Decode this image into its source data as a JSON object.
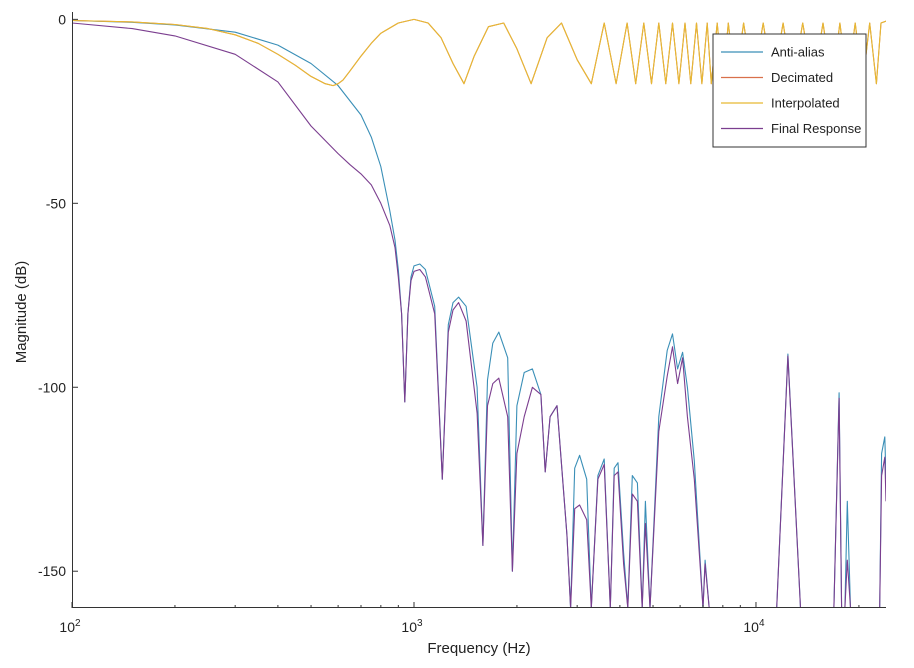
{
  "chart_data": {
    "type": "line",
    "title": "",
    "xlabel": "Frequency (Hz)",
    "ylabel": "Magnitude (dB)",
    "xscale": "log",
    "xlim": [
      100,
      24000
    ],
    "ylim": [
      -160,
      2
    ],
    "grid": false,
    "legend_placement": "top-right",
    "x_ticks": [
      {
        "value": 100,
        "base": "10",
        "exp": "2"
      },
      {
        "value": 1000,
        "base": "10",
        "exp": "3"
      },
      {
        "value": 10000,
        "base": "10",
        "exp": "4"
      }
    ],
    "y_ticks": [
      {
        "value": 0,
        "label": "0"
      },
      {
        "value": -50,
        "label": "-50"
      },
      {
        "value": -100,
        "label": "-100"
      },
      {
        "value": -150,
        "label": "-150"
      }
    ],
    "series": [
      {
        "name": "Anti-alias",
        "color": "#3a8fb7",
        "x": [
          100,
          150,
          200,
          300,
          400,
          500,
          600,
          700,
          750,
          800,
          850,
          880,
          900,
          920,
          940,
          960,
          980,
          1000,
          1040,
          1080,
          1150,
          1210,
          1260,
          1300,
          1350,
          1420,
          1530,
          1590,
          1640,
          1700,
          1770,
          1880,
          1940,
          2000,
          2100,
          2220,
          2350,
          2420,
          2500,
          2620,
          2800,
          2870,
          2950,
          3050,
          3200,
          3300,
          3450,
          3600,
          3750,
          3850,
          3950,
          4100,
          4220,
          4350,
          4500,
          4650,
          4750,
          4900,
          5200,
          5500,
          5700,
          5900,
          6100,
          6300,
          6600,
          7000,
          7100,
          7300,
          8000,
          10000,
          11500,
          12400,
          13500,
          15000,
          16900,
          17500,
          17800,
          18200,
          18500,
          18900,
          19000,
          22000,
          23000,
          23300,
          23800,
          24000
        ],
        "y": [
          -0.3,
          -0.8,
          -1.5,
          -3.5,
          -7,
          -12,
          -18,
          -26,
          -32,
          -40,
          -52,
          -60,
          -68,
          -80,
          -104,
          -80,
          -70,
          -67,
          -66.5,
          -68,
          -78,
          -125,
          -83,
          -77,
          -75.5,
          -78,
          -100,
          -143,
          -98,
          -88,
          -85,
          -92,
          -150,
          -105,
          -96,
          -95,
          -102,
          -123,
          -108,
          -105,
          -140,
          -160,
          -122,
          -118.5,
          -125,
          -160,
          -124,
          -119.5,
          -160,
          -122,
          -120.5,
          -145,
          -160,
          -124,
          -126,
          -160,
          -131,
          -160,
          -108,
          -90,
          -85.5,
          -95,
          -90.5,
          -100,
          -120,
          -160,
          -147,
          -160,
          -160,
          -160,
          -160,
          -91,
          -160,
          -160,
          -160,
          -101.5,
          -160,
          -160,
          -131,
          -160,
          -160,
          -160,
          -160,
          -118,
          -113.5,
          -125
        ]
      },
      {
        "name": "Decimated",
        "color": "#d9704b",
        "x": [
          100,
          150,
          200,
          250,
          300,
          350,
          400,
          450,
          500,
          550,
          580,
          600,
          620,
          650,
          700,
          750,
          800,
          900,
          1000,
          1100,
          1200,
          1300,
          1400,
          1500,
          1650,
          1830,
          2000,
          2200,
          2450,
          2700,
          3000,
          3300,
          3600,
          3900,
          4200,
          4450,
          4700,
          4950,
          5200,
          5450,
          5700,
          5950,
          6200,
          6450,
          6700,
          6950,
          7200,
          7400,
          7700,
          8000,
          8300,
          8700,
          9200,
          9800,
          10500,
          11200,
          12000,
          12800,
          13700,
          14700,
          15700,
          16700,
          17600,
          18500,
          19500,
          20500,
          21500,
          22500,
          23200,
          24000
        ],
        "y": [
          -0.3,
          -0.7,
          -1.4,
          -2.5,
          -4.2,
          -6.5,
          -9.5,
          -12.5,
          -15.5,
          -17.5,
          -18,
          -17.5,
          -16.5,
          -14,
          -10,
          -6.5,
          -3.8,
          -1,
          0,
          -1,
          -5,
          -12,
          -17.5,
          -10,
          -2,
          -1,
          -8,
          -17.5,
          -5,
          -1,
          -11,
          -17.5,
          -1,
          -17.5,
          -1,
          -17.5,
          -1,
          -17.5,
          -1,
          -17.5,
          -1,
          -17.5,
          -1,
          -17.5,
          -1,
          -17.5,
          -1,
          -17.5,
          -1,
          -17.5,
          -1,
          -17.5,
          -1,
          -17.5,
          -1,
          -17.5,
          -1,
          -17.5,
          -1,
          -17.5,
          -1,
          -17.5,
          -1,
          -17.5,
          -1,
          -17.5,
          -1,
          -17.5,
          -1,
          -0.5
        ]
      },
      {
        "name": "Interpolated",
        "color": "#e6b933",
        "x": [
          100,
          150,
          200,
          250,
          300,
          350,
          400,
          450,
          500,
          550,
          580,
          600,
          620,
          650,
          700,
          750,
          800,
          900,
          1000,
          1100,
          1200,
          1300,
          1400,
          1500,
          1650,
          1830,
          2000,
          2200,
          2450,
          2700,
          3000,
          3300,
          3600,
          3900,
          4200,
          4450,
          4700,
          4950,
          5200,
          5450,
          5700,
          5950,
          6200,
          6450,
          6700,
          6950,
          7200,
          7400,
          7700,
          8000,
          8300,
          8700,
          9200,
          9800,
          10500,
          11200,
          12000,
          12800,
          13700,
          14700,
          15700,
          16700,
          17600,
          18500,
          19500,
          20500,
          21500,
          22500,
          23200,
          24000
        ],
        "y": [
          -0.3,
          -0.7,
          -1.4,
          -2.5,
          -4.2,
          -6.5,
          -9.5,
          -12.5,
          -15.5,
          -17.5,
          -18,
          -17.5,
          -16.5,
          -14,
          -10,
          -6.5,
          -3.8,
          -1,
          0,
          -1,
          -5,
          -12,
          -17.5,
          -10,
          -2,
          -1,
          -8,
          -17.5,
          -5,
          -1,
          -11,
          -17.5,
          -1,
          -17.5,
          -1,
          -17.5,
          -1,
          -17.5,
          -1,
          -17.5,
          -1,
          -17.5,
          -1,
          -17.5,
          -1,
          -17.5,
          -1,
          -17.5,
          -1,
          -17.5,
          -1,
          -17.5,
          -1,
          -17.5,
          -1,
          -17.5,
          -1,
          -17.5,
          -1,
          -17.5,
          -1,
          -17.5,
          -1,
          -17.5,
          -1,
          -17.5,
          -1,
          -17.5,
          -1,
          -0.5
        ]
      },
      {
        "name": "Final Response",
        "color": "#7b3e8f",
        "x": [
          100,
          150,
          200,
          300,
          400,
          500,
          600,
          650,
          700,
          750,
          800,
          850,
          880,
          900,
          920,
          940,
          960,
          980,
          1000,
          1040,
          1080,
          1150,
          1210,
          1260,
          1300,
          1350,
          1420,
          1530,
          1590,
          1640,
          1700,
          1770,
          1880,
          1940,
          2000,
          2100,
          2220,
          2350,
          2420,
          2500,
          2620,
          2800,
          2870,
          2950,
          3050,
          3200,
          3300,
          3450,
          3600,
          3750,
          3850,
          3950,
          4100,
          4220,
          4350,
          4500,
          4650,
          4750,
          4900,
          5200,
          5500,
          5700,
          5900,
          6100,
          6300,
          6600,
          7000,
          7100,
          7300,
          8000,
          10000,
          11500,
          12400,
          13500,
          15000,
          16900,
          17500,
          17800,
          18200,
          18500,
          18900,
          19000,
          22000,
          23000,
          23300,
          23800,
          24000
        ],
        "y": [
          -1,
          -2.5,
          -4.5,
          -9.5,
          -17,
          -29,
          -36.5,
          -39.5,
          -42,
          -45,
          -50,
          -56,
          -62,
          -70,
          -80,
          -104,
          -80,
          -71,
          -68.5,
          -68,
          -70,
          -80,
          -125,
          -85,
          -79,
          -77,
          -82,
          -107,
          -143,
          -105,
          -99,
          -97.5,
          -108,
          -150,
          -118,
          -108,
          -100,
          -102,
          -123,
          -108,
          -105,
          -140,
          -160,
          -133,
          -132,
          -136,
          -160,
          -125,
          -121,
          -160,
          -124,
          -123,
          -148,
          -160,
          -129,
          -131,
          -160,
          -137,
          -160,
          -112,
          -97,
          -89,
          -99,
          -92,
          -108,
          -125,
          -160,
          -148,
          -160,
          -160,
          -160,
          -160,
          -91.5,
          -160,
          -160,
          -160,
          -103,
          -160,
          -160,
          -147,
          -160,
          -160,
          -160,
          -160,
          -124,
          -119,
          -131
        ]
      }
    ]
  }
}
